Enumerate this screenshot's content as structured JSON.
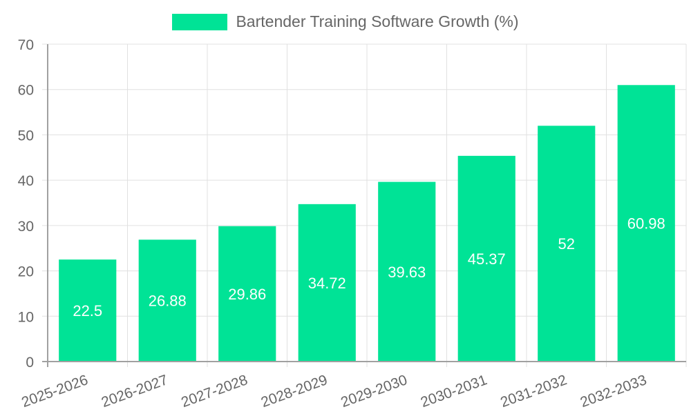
{
  "chart_data": {
    "type": "bar",
    "title": "",
    "legend": [
      {
        "label": "Bartender Training Software Growth (%)",
        "color": "#00e396"
      }
    ],
    "categories": [
      "2025-2026",
      "2026-2027",
      "2027-2028",
      "2028-2029",
      "2029-2030",
      "2030-2031",
      "2031-2032",
      "2032-2033"
    ],
    "series": [
      {
        "name": "Bartender Training Software Growth (%)",
        "values": [
          22.5,
          26.88,
          29.86,
          34.72,
          39.63,
          45.37,
          52,
          60.98
        ]
      }
    ],
    "xlabel": "",
    "ylabel": "",
    "ylim": [
      0,
      70
    ],
    "yticks": [
      0,
      10,
      20,
      30,
      40,
      50,
      60,
      70
    ],
    "grid": true,
    "legend_position": "top",
    "data_labels": [
      "22.5",
      "26.88",
      "29.86",
      "34.72",
      "39.63",
      "45.37",
      "52",
      "60.98"
    ]
  },
  "legend": {
    "label": "Bartender Training Software Growth (%)"
  },
  "colors": {
    "bar": "#00e396",
    "grid": "#e0e0e0",
    "axis": "#a0a0a0",
    "tick_text": "#666666",
    "data_label": "#ffffff"
  }
}
